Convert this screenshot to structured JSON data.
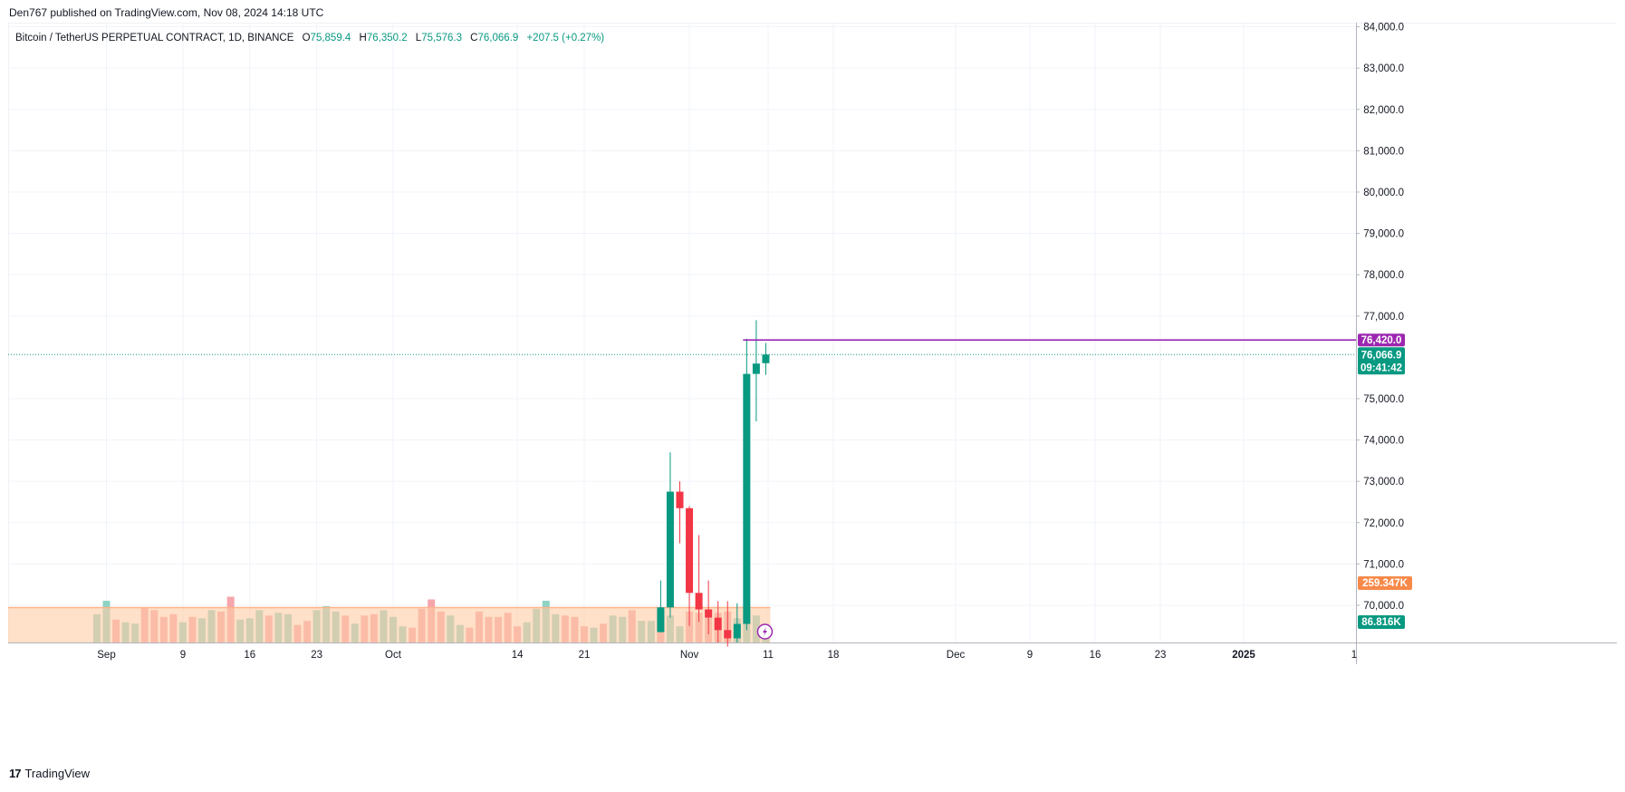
{
  "header": {
    "published": "Den767 published on TradingView.com, Nov 08, 2024 14:18 UTC"
  },
  "legend": {
    "symbol": "Bitcoin / TetherUS PERPETUAL CONTRACT, 1D, BINANCE",
    "o_label": "O",
    "o": "75,859.4",
    "h_label": "H",
    "h": "76,350.2",
    "l_label": "L",
    "l": "75,576.3",
    "c_label": "C",
    "c": "76,066.9",
    "change": "+207.5 (+0.27%)"
  },
  "footer": {
    "logo": "17",
    "brand": "TradingView"
  },
  "colors": {
    "up": "#089981",
    "down": "#f23645",
    "vol_up": "#8fd3c5",
    "vol_down": "#f5a6ac",
    "vol_ma": "#ffcba4",
    "line": "#9c27b0"
  },
  "chart_data": {
    "type": "candlestick",
    "title": "Bitcoin / TetherUS PERPETUAL CONTRACT, 1D, BINANCE",
    "ylim": [
      69100,
      84100
    ],
    "y_ticks": [
      "84,000.0",
      "83,000.0",
      "82,000.0",
      "81,000.0",
      "80,000.0",
      "79,000.0",
      "78,000.0",
      "77,000.0",
      "75,000.0",
      "74,000.0",
      "73,000.0",
      "72,000.0",
      "71,000.0",
      "70,000.0"
    ],
    "y_tick_values": [
      84000,
      83000,
      82000,
      81000,
      80000,
      79000,
      78000,
      77000,
      75000,
      74000,
      73000,
      72000,
      71000,
      70000
    ],
    "x_ticks": [
      {
        "label": "Sep",
        "day": 0
      },
      {
        "label": "9",
        "day": 8
      },
      {
        "label": "16",
        "day": 15
      },
      {
        "label": "23",
        "day": 22
      },
      {
        "label": "Oct",
        "day": 30
      },
      {
        "label": "14",
        "day": 43
      },
      {
        "label": "21",
        "day": 50
      },
      {
        "label": "Nov",
        "day": 61
      },
      {
        "label": "11",
        "day": 71
      },
      {
        "label": "18",
        "day": 78
      },
      {
        "label": "Dec",
        "day": 91
      },
      {
        "label": "9",
        "day": 99
      },
      {
        "label": "16",
        "day": 106
      },
      {
        "label": "23",
        "day": 113
      },
      {
        "label": "2025",
        "day": 122
      },
      {
        "label": "1",
        "day": 122
      }
    ],
    "candles": [
      {
        "day": 58,
        "o": 69350,
        "h": 70600,
        "l": 69350,
        "c": 69950
      },
      {
        "day": 59,
        "o": 69950,
        "h": 73700,
        "l": 69700,
        "c": 72750
      },
      {
        "day": 60,
        "o": 72750,
        "h": 73000,
        "l": 71500,
        "c": 72350
      },
      {
        "day": 61,
        "o": 72350,
        "h": 72400,
        "l": 69500,
        "c": 70300
      },
      {
        "day": 62,
        "o": 70300,
        "h": 71700,
        "l": 69600,
        "c": 69900
      },
      {
        "day": 63,
        "o": 69900,
        "h": 70600,
        "l": 69300,
        "c": 69700
      },
      {
        "day": 64,
        "o": 69700,
        "h": 70100,
        "l": 69100,
        "c": 69400
      },
      {
        "day": 65,
        "o": 69400,
        "h": 70100,
        "l": 69000,
        "c": 69200
      },
      {
        "day": 66,
        "o": 69200,
        "h": 70050,
        "l": 69100,
        "c": 69550
      },
      {
        "day": 67,
        "o": 69550,
        "h": 76450,
        "l": 69400,
        "c": 75600
      },
      {
        "day": 68,
        "o": 75600,
        "h": 76900,
        "l": 74450,
        "c": 75850
      },
      {
        "day": 69,
        "o": 75859.4,
        "h": 76350.2,
        "l": 75576.3,
        "c": 76066.9
      }
    ],
    "volume": {
      "scale_max": 700000,
      "bars": [
        {
          "day": -1,
          "v": 210000,
          "up": true
        },
        {
          "day": 0,
          "v": 310000,
          "up": true
        },
        {
          "day": 1,
          "v": 170000,
          "up": false
        },
        {
          "day": 2,
          "v": 150000,
          "up": true
        },
        {
          "day": 3,
          "v": 140000,
          "up": true
        },
        {
          "day": 4,
          "v": 260000,
          "up": false
        },
        {
          "day": 5,
          "v": 240000,
          "up": false
        },
        {
          "day": 6,
          "v": 190000,
          "up": false
        },
        {
          "day": 7,
          "v": 210000,
          "up": false
        },
        {
          "day": 8,
          "v": 150000,
          "up": true
        },
        {
          "day": 9,
          "v": 190000,
          "up": false
        },
        {
          "day": 10,
          "v": 180000,
          "up": true
        },
        {
          "day": 11,
          "v": 240000,
          "up": true
        },
        {
          "day": 12,
          "v": 230000,
          "up": false
        },
        {
          "day": 13,
          "v": 340000,
          "up": false
        },
        {
          "day": 14,
          "v": 170000,
          "up": true
        },
        {
          "day": 15,
          "v": 180000,
          "up": true
        },
        {
          "day": 16,
          "v": 240000,
          "up": true
        },
        {
          "day": 17,
          "v": 200000,
          "up": false
        },
        {
          "day": 18,
          "v": 220000,
          "up": true
        },
        {
          "day": 19,
          "v": 210000,
          "up": true
        },
        {
          "day": 20,
          "v": 130000,
          "up": false
        },
        {
          "day": 21,
          "v": 160000,
          "up": false
        },
        {
          "day": 22,
          "v": 240000,
          "up": true
        },
        {
          "day": 23,
          "v": 270000,
          "up": true
        },
        {
          "day": 24,
          "v": 230000,
          "up": true
        },
        {
          "day": 25,
          "v": 200000,
          "up": false
        },
        {
          "day": 26,
          "v": 140000,
          "up": true
        },
        {
          "day": 27,
          "v": 200000,
          "up": false
        },
        {
          "day": 28,
          "v": 210000,
          "up": false
        },
        {
          "day": 29,
          "v": 240000,
          "up": true
        },
        {
          "day": 30,
          "v": 190000,
          "up": true
        },
        {
          "day": 31,
          "v": 120000,
          "up": true
        },
        {
          "day": 32,
          "v": 110000,
          "up": false
        },
        {
          "day": 33,
          "v": 250000,
          "up": false
        },
        {
          "day": 34,
          "v": 320000,
          "up": false
        },
        {
          "day": 35,
          "v": 230000,
          "up": false
        },
        {
          "day": 36,
          "v": 200000,
          "up": true
        },
        {
          "day": 37,
          "v": 130000,
          "up": true
        },
        {
          "day": 38,
          "v": 110000,
          "up": false
        },
        {
          "day": 39,
          "v": 230000,
          "up": false
        },
        {
          "day": 40,
          "v": 190000,
          "up": false
        },
        {
          "day": 41,
          "v": 190000,
          "up": false
        },
        {
          "day": 42,
          "v": 220000,
          "up": false
        },
        {
          "day": 43,
          "v": 120000,
          "up": false
        },
        {
          "day": 44,
          "v": 150000,
          "up": true
        },
        {
          "day": 45,
          "v": 250000,
          "up": true
        },
        {
          "day": 46,
          "v": 310000,
          "up": true
        },
        {
          "day": 47,
          "v": 210000,
          "up": true
        },
        {
          "day": 48,
          "v": 200000,
          "up": false
        },
        {
          "day": 49,
          "v": 190000,
          "up": false
        },
        {
          "day": 50,
          "v": 120000,
          "up": false
        },
        {
          "day": 51,
          "v": 110000,
          "up": true
        },
        {
          "day": 52,
          "v": 140000,
          "up": false
        },
        {
          "day": 53,
          "v": 200000,
          "up": true
        },
        {
          "day": 54,
          "v": 190000,
          "up": true
        },
        {
          "day": 55,
          "v": 240000,
          "up": false
        },
        {
          "day": 56,
          "v": 160000,
          "up": true
        },
        {
          "day": 57,
          "v": 160000,
          "up": true
        },
        {
          "day": 58,
          "v": 250000,
          "up": false
        },
        {
          "day": 59,
          "v": 200000,
          "up": true
        },
        {
          "day": 60,
          "v": 120000,
          "up": true
        },
        {
          "day": 61,
          "v": 230000,
          "up": false
        },
        {
          "day": 62,
          "v": 220000,
          "up": false
        },
        {
          "day": 63,
          "v": 180000,
          "up": false
        },
        {
          "day": 64,
          "v": 220000,
          "up": false
        },
        {
          "day": 65,
          "v": 230000,
          "up": false
        },
        {
          "day": 66,
          "v": 180000,
          "up": true
        },
        {
          "day": 67,
          "v": 240000,
          "up": true
        },
        {
          "day": 68,
          "v": 200000,
          "up": true
        },
        {
          "day": 69,
          "v": 86816,
          "up": true
        }
      ],
      "ma_value": 259347
    },
    "horizontal_line": {
      "value": 76420.0,
      "label": "76,420.0"
    },
    "last_price": {
      "value": 76066.9,
      "label": "76,066.9",
      "countdown": "09:41:42"
    },
    "volume_labels": {
      "ma": "259.347K",
      "current": "86.816K"
    }
  }
}
